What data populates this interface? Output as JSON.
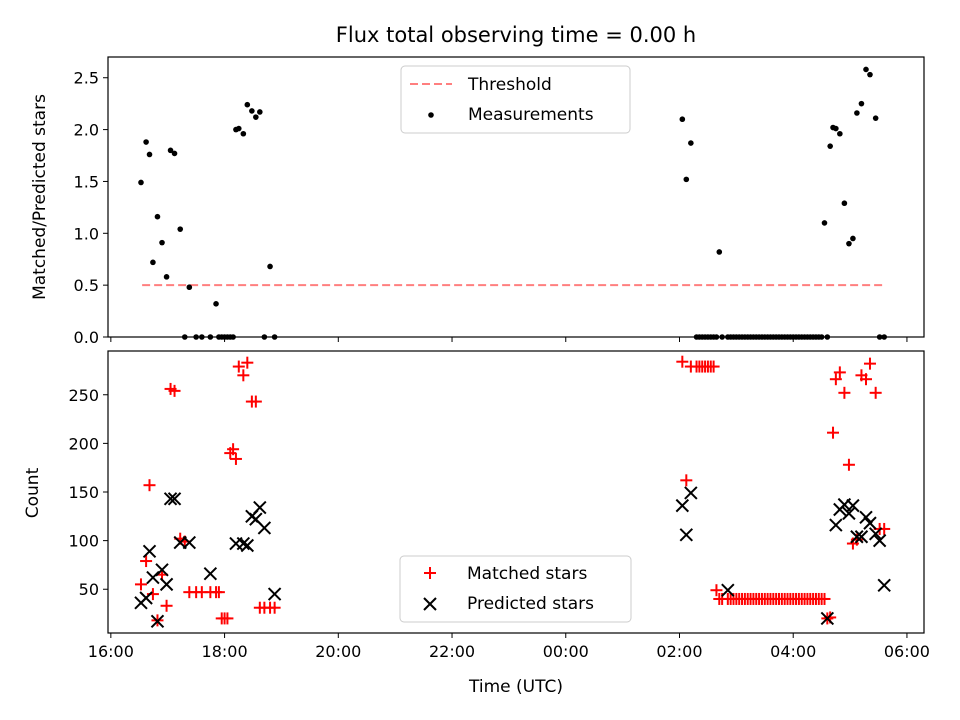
{
  "chart_data": [
    {
      "type": "scatter",
      "title": "Flux total observing time = 0.00 h",
      "xlabel": "",
      "ylabel": "Matched/Predicted stars",
      "xlim": [
        15.95,
        30.3
      ],
      "ylim": [
        0,
        2.7
      ],
      "yticks": [
        0.0,
        0.5,
        1.0,
        1.5,
        2.0,
        2.5
      ],
      "ytick_labels": [
        "0.0",
        "0.5",
        "1.0",
        "1.5",
        "2.0",
        "2.5"
      ],
      "xticks": [
        16,
        18,
        20,
        22,
        24,
        26,
        28,
        30
      ],
      "legend_position": "top-center",
      "series": [
        {
          "name": "Threshold",
          "style": "dashed-line",
          "color": "#ff7f7f",
          "x": [
            16.55,
            29.6
          ],
          "y": [
            0.5,
            0.5
          ]
        },
        {
          "name": "Measurements",
          "style": "dot",
          "color": "#000000",
          "x": [
            16.53,
            16.62,
            16.68,
            16.74,
            16.82,
            16.9,
            16.98,
            17.05,
            17.12,
            17.22,
            17.3,
            17.38,
            17.5,
            17.6,
            17.75,
            17.85,
            17.9,
            17.95,
            18.0,
            18.05,
            18.1,
            18.15,
            18.2,
            18.25,
            18.33,
            18.4,
            18.48,
            18.55,
            18.62,
            18.7,
            18.8,
            18.88,
            26.05,
            26.12,
            26.2,
            26.3,
            26.35,
            26.4,
            26.45,
            26.5,
            26.55,
            26.6,
            26.65,
            26.7,
            26.75,
            26.85,
            26.9,
            26.95,
            27.0,
            27.05,
            27.1,
            27.15,
            27.2,
            27.25,
            27.3,
            27.35,
            27.4,
            27.45,
            27.5,
            27.55,
            27.6,
            27.65,
            27.7,
            27.75,
            27.8,
            27.85,
            27.9,
            27.95,
            28.0,
            28.05,
            28.1,
            28.15,
            28.2,
            28.25,
            28.3,
            28.35,
            28.4,
            28.45,
            28.5,
            28.55,
            28.6,
            28.65,
            28.7,
            28.75,
            28.82,
            28.9,
            28.98,
            29.05,
            29.12,
            29.2,
            29.28,
            29.35,
            29.45,
            29.52,
            29.6
          ],
          "y": [
            1.49,
            1.88,
            1.76,
            0.72,
            1.16,
            0.91,
            0.58,
            1.8,
            1.77,
            1.04,
            0,
            0.48,
            0,
            0,
            0,
            0.32,
            0,
            0,
            0,
            0,
            0,
            0,
            2.0,
            2.01,
            1.96,
            2.24,
            2.18,
            2.12,
            2.17,
            0,
            0.68,
            0,
            2.1,
            1.52,
            1.87,
            0,
            0,
            0,
            0,
            0,
            0,
            0,
            0,
            0.82,
            0,
            0,
            0,
            0,
            0,
            0,
            0,
            0,
            0,
            0,
            0,
            0,
            0,
            0,
            0,
            0,
            0,
            0,
            0,
            0,
            0,
            0,
            0,
            0,
            0,
            0,
            0,
            0,
            0,
            0,
            0,
            0,
            0,
            0,
            0,
            1.1,
            0,
            1.84,
            2.02,
            2.01,
            1.96,
            1.29,
            0.9,
            0.95,
            2.16,
            2.25,
            2.58,
            2.53,
            2.11,
            0,
            0
          ],
          "x_trim": 93
        }
      ]
    },
    {
      "type": "scatter",
      "title": "",
      "xlabel": "Time (UTC)",
      "ylabel": "Count",
      "xlim": [
        15.95,
        30.3
      ],
      "ylim": [
        5,
        295
      ],
      "yticks": [
        50,
        100,
        150,
        200,
        250
      ],
      "ytick_labels": [
        "50",
        "100",
        "150",
        "200",
        "250"
      ],
      "xticks": [
        16,
        18,
        20,
        22,
        24,
        26,
        28,
        30
      ],
      "xtick_labels": [
        "16:00",
        "18:00",
        "20:00",
        "22:00",
        "00:00",
        "02:00",
        "04:00",
        "06:00"
      ],
      "legend_position": "bottom-center",
      "series": [
        {
          "name": "Matched stars",
          "marker": "plus",
          "color": "#ff0000",
          "x": [
            16.53,
            16.62,
            16.68,
            16.74,
            16.82,
            16.9,
            16.98,
            17.05,
            17.12,
            17.22,
            17.3,
            17.38,
            17.5,
            17.6,
            17.75,
            17.85,
            17.9,
            17.95,
            18.0,
            18.05,
            18.1,
            18.15,
            18.2,
            18.25,
            18.33,
            18.4,
            18.48,
            18.55,
            18.62,
            18.7,
            18.8,
            18.88,
            26.05,
            26.12,
            26.2,
            26.3,
            26.35,
            26.4,
            26.45,
            26.5,
            26.55,
            26.6,
            26.65,
            26.7,
            26.75,
            26.85,
            26.9,
            26.95,
            27.0,
            27.05,
            27.1,
            27.15,
            27.2,
            27.25,
            27.3,
            27.35,
            27.4,
            27.45,
            27.5,
            27.55,
            27.6,
            27.65,
            27.7,
            27.75,
            27.8,
            27.85,
            27.9,
            27.95,
            28.0,
            28.05,
            28.1,
            28.15,
            28.2,
            28.25,
            28.3,
            28.35,
            28.4,
            28.45,
            28.5,
            28.55,
            28.6,
            28.65,
            28.7,
            28.75,
            28.82,
            28.9,
            28.98,
            29.05,
            29.12,
            29.2,
            29.28,
            29.35,
            29.45,
            29.52,
            29.6
          ],
          "y": [
            55,
            79,
            157,
            45,
            18,
            65,
            33,
            256,
            254,
            102,
            99,
            47,
            47,
            47,
            47,
            47,
            47,
            20,
            20,
            20,
            190,
            194,
            184,
            279,
            270,
            283,
            243,
            243,
            31,
            31,
            31,
            31,
            284,
            162,
            279,
            279,
            279,
            279,
            279,
            279,
            279,
            279,
            49,
            40,
            40,
            40,
            40,
            40,
            40,
            40,
            40,
            40,
            40,
            40,
            40,
            40,
            40,
            40,
            40,
            40,
            40,
            40,
            40,
            40,
            40,
            40,
            40,
            40,
            40,
            40,
            40,
            40,
            40,
            40,
            40,
            40,
            40,
            40,
            40,
            40,
            20,
            21,
            211,
            266,
            273,
            252,
            178,
            97,
            101,
            270,
            266,
            282,
            252,
            112,
            112
          ]
        },
        {
          "name": "Predicted stars",
          "marker": "x",
          "color": "#000000",
          "x": [
            16.53,
            16.62,
            16.68,
            16.74,
            16.82,
            16.9,
            16.98,
            17.05,
            17.12,
            17.22,
            17.38,
            17.75,
            18.2,
            18.33,
            18.4,
            18.48,
            18.55,
            18.62,
            18.7,
            18.88,
            26.05,
            26.12,
            26.2,
            26.85,
            28.6,
            28.75,
            28.82,
            28.9,
            28.98,
            29.05,
            29.12,
            29.2,
            29.28,
            29.35,
            29.45,
            29.52,
            29.6
          ],
          "y": [
            36,
            41,
            89,
            62,
            17,
            70,
            55,
            143,
            143,
            98,
            98,
            66,
            97,
            97,
            95,
            125,
            122,
            134,
            113,
            45,
            136,
            106,
            149,
            49,
            20,
            116,
            132,
            137,
            128,
            136,
            104,
            104,
            124,
            118,
            107,
            100,
            54
          ]
        }
      ]
    }
  ]
}
